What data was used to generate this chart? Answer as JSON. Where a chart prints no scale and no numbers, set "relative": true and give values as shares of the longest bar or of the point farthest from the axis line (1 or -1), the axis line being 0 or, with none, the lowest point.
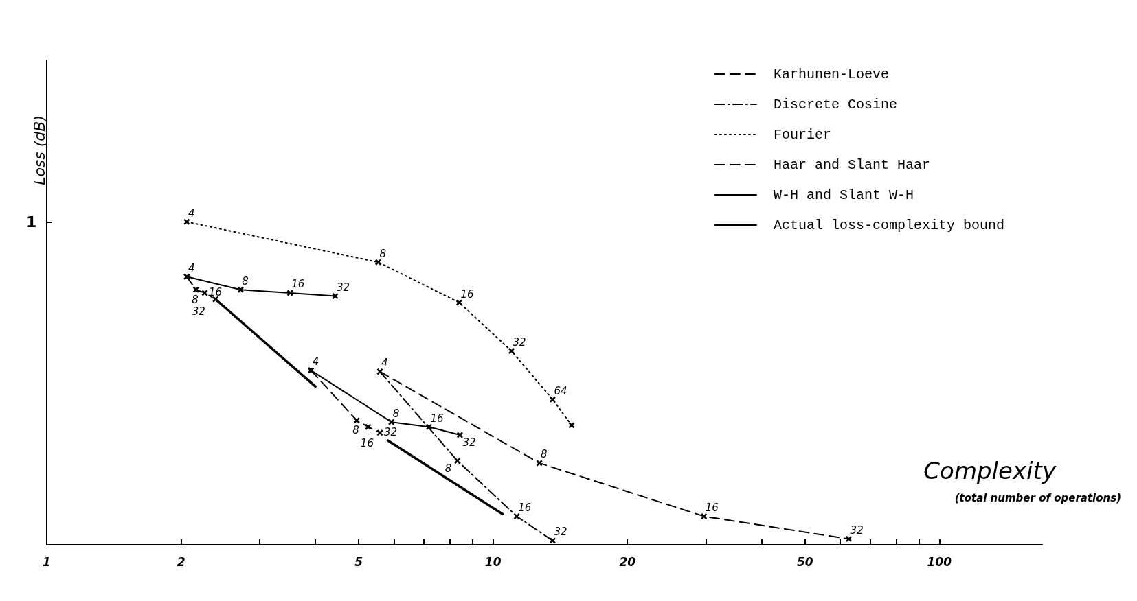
{
  "chart_data": {
    "type": "line",
    "xlabel": "Complexity\n(total number of operations)",
    "ylabel": "Loss (dB)",
    "log": "x",
    "grid": false,
    "legend": "top right",
    "xlim": [
      1,
      170
    ],
    "relative": true,
    "xticks": [
      1,
      2,
      {
        "value": 3,
        "label": null
      },
      {
        "value": 4,
        "label": null
      },
      5,
      {
        "value": 6,
        "label": null
      },
      {
        "value": 7,
        "label": null
      },
      {
        "value": 8,
        "label": null
      },
      {
        "value": 9,
        "label": null
      },
      10,
      20,
      {
        "value": 30,
        "label": null
      },
      {
        "value": 40,
        "label": null
      },
      50,
      {
        "value": 60,
        "label": null
      },
      {
        "value": 70,
        "label": null
      },
      {
        "value": 80,
        "label": null
      },
      {
        "value": 90,
        "label": null
      },
      100
    ],
    "annotations": [
      "1",
      {
        "text": "4",
        "x": 2.06,
        "y": 1.0
      },
      {
        "text": "8",
        "x": 5.53,
        "y": 0.875
      },
      {
        "text": "16",
        "x": 8.4,
        "y": 0.75
      },
      {
        "text": "32",
        "x": 11.0,
        "y": 0.6
      },
      {
        "text": "64",
        "x": 13.6,
        "y": 0.45
      },
      {
        "text": "4",
        "x": 2.06,
        "y": 0.83
      },
      {
        "text": "8",
        "x": 2.72,
        "y": 0.79
      },
      {
        "text": "16",
        "x": 3.51,
        "y": 0.78
      },
      {
        "text": "32",
        "x": 4.43,
        "y": 0.77
      },
      {
        "text": "8",
        "x": 2.16,
        "y": 0.79
      },
      {
        "text": "16",
        "x": 2.26,
        "y": 0.78
      },
      {
        "text": "32",
        "x": 2.39,
        "y": 0.76
      },
      {
        "text": "4",
        "x": 3.91,
        "y": 0.54
      },
      {
        "text": "8",
        "x": 5.92,
        "y": 0.38
      },
      {
        "text": "16",
        "x": 7.19,
        "y": 0.365
      },
      {
        "text": "32",
        "x": 8.43,
        "y": 0.34
      },
      {
        "text": "8",
        "x": 4.95,
        "y": 0.385
      },
      {
        "text": "16",
        "x": 5.25,
        "y": 0.365
      },
      {
        "text": "32",
        "x": 5.58,
        "y": 0.347
      },
      {
        "text": "4",
        "x": 5.58,
        "y": 0.536
      },
      {
        "text": "8",
        "x": 12.7,
        "y": 0.253
      },
      {
        "text": "16",
        "x": 29.7,
        "y": 0.088
      },
      {
        "text": "32",
        "x": 62.7,
        "y": 0.018
      },
      {
        "text": "8",
        "x": 8.32,
        "y": 0.26
      },
      {
        "text": "16",
        "x": 11.3,
        "y": 0.088
      },
      {
        "text": "32",
        "x": 13.6,
        "y": 0.013
      }
    ],
    "series": [
      {
        "name": "Karhunen-Loeve",
        "color": "#000000",
        "line_style": "dashed",
        "marker": "cross",
        "x": [
          5.58,
          12.7,
          29.7,
          62.7
        ],
        "values": [
          0.536,
          0.253,
          0.088,
          0.018
        ]
      },
      {
        "name": "Discrete Cosine",
        "color": "#000000",
        "line_style": "dashdot",
        "marker": "cross",
        "x": [
          5.58,
          8.32,
          11.3,
          13.6
        ],
        "values": [
          0.536,
          0.26,
          0.088,
          0.013
        ]
      },
      {
        "name": "Fourier",
        "color": "#000000",
        "line_style": "dotted",
        "marker": "cross",
        "x": [
          2.06,
          5.53,
          8.4,
          11.0,
          13.6,
          15.0
        ],
        "values": [
          1.0,
          0.875,
          0.75,
          0.6,
          0.45,
          0.37
        ]
      },
      {
        "name": "Haar and Slant Haar",
        "color": "#000000",
        "line_style": "dashed",
        "marker": "cross",
        "x": [
          2.06,
          2.16,
          2.26,
          2.39,
          null,
          3.91,
          4.95,
          5.25,
          5.58
        ],
        "values": [
          0.83,
          0.79,
          0.78,
          0.76,
          null,
          0.54,
          0.385,
          0.365,
          0.347
        ]
      },
      {
        "name": "W-H and Slant W-H",
        "color": "#000000",
        "line_style": "solid",
        "marker": "cross",
        "x": [
          2.06,
          2.72,
          3.51,
          4.43,
          null,
          3.91,
          5.92,
          7.19,
          8.43
        ],
        "values": [
          0.83,
          0.79,
          0.78,
          0.77,
          null,
          0.54,
          0.38,
          0.365,
          0.34
        ]
      },
      {
        "name": "Actual loss-complexity bound",
        "color": "#000000",
        "line_style": "solid",
        "marker": "none",
        "x": [
          2.39,
          4.0,
          null,
          5.81,
          10.5
        ],
        "values": [
          0.76,
          0.49,
          null,
          0.323,
          0.095
        ]
      }
    ]
  }
}
